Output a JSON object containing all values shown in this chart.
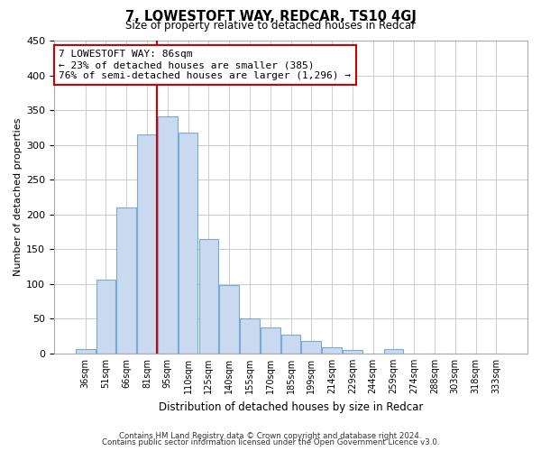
{
  "title": "7, LOWESTOFT WAY, REDCAR, TS10 4GJ",
  "subtitle": "Size of property relative to detached houses in Redcar",
  "xlabel": "Distribution of detached houses by size in Redcar",
  "ylabel": "Number of detached properties",
  "categories": [
    "36sqm",
    "51sqm",
    "66sqm",
    "81sqm",
    "95sqm",
    "110sqm",
    "125sqm",
    "140sqm",
    "155sqm",
    "170sqm",
    "185sqm",
    "199sqm",
    "214sqm",
    "229sqm",
    "244sqm",
    "259sqm",
    "274sqm",
    "288sqm",
    "303sqm",
    "318sqm",
    "333sqm"
  ],
  "values": [
    7,
    106,
    210,
    315,
    341,
    318,
    165,
    99,
    50,
    37,
    27,
    18,
    9,
    5,
    0,
    6,
    0,
    0,
    0,
    0,
    0
  ],
  "bar_color": "#c9d9f0",
  "bar_edge_color": "#7aabd4",
  "vline_x": 3.5,
  "vline_color": "#cc0000",
  "annotation_title": "7 LOWESTOFT WAY: 86sqm",
  "annotation_line1": "← 23% of detached houses are smaller (385)",
  "annotation_line2": "76% of semi-detached houses are larger (1,296) →",
  "annotation_box_facecolor": "#ffffff",
  "annotation_box_edgecolor": "#cc0000",
  "footer1": "Contains HM Land Registry data © Crown copyright and database right 2024.",
  "footer2": "Contains public sector information licensed under the Open Government Licence v3.0.",
  "ylim": [
    0,
    450
  ],
  "yticks": [
    0,
    50,
    100,
    150,
    200,
    250,
    300,
    350,
    400,
    450
  ],
  "bg_color": "#ffffff",
  "grid_color": "#cccccc"
}
